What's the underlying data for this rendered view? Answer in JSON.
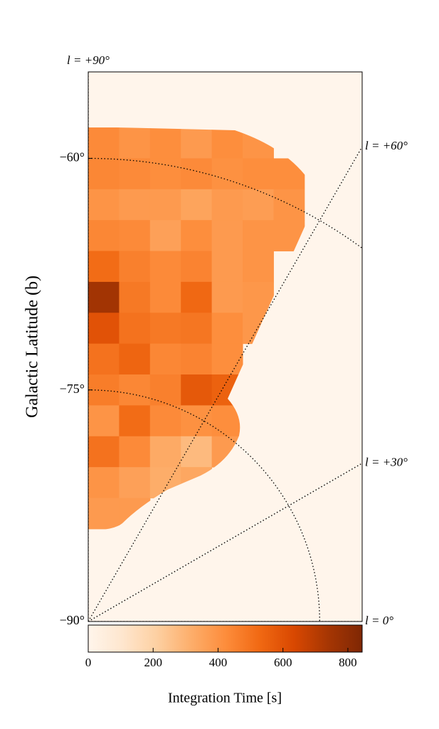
{
  "chart_data": {
    "type": "heatmap",
    "ylabel": "Galactic Latitude (b)",
    "colorbar_label": "Integration Time [s]",
    "xlim": [
      0,
      17.74
    ],
    "ylim": [
      -90,
      -54.4
    ],
    "yticks": [
      {
        "value": -90,
        "label": "−90°"
      },
      {
        "value": -75,
        "label": "−75°"
      },
      {
        "value": -60,
        "label": "−60°"
      }
    ],
    "longitude_lines": [
      {
        "value": 90,
        "label": "l = +90°"
      },
      {
        "value": 60,
        "label": "l = +60°"
      },
      {
        "value": 30,
        "label": "l = +30°"
      },
      {
        "value": 0,
        "label": "l = 0°"
      }
    ],
    "x_edges": [
      0,
      2,
      4,
      6,
      8,
      10,
      12,
      14
    ],
    "y_edges": [
      -58,
      -60,
      -62,
      -64,
      -66,
      -68,
      -70,
      -72,
      -74,
      -76,
      -78,
      -80,
      -82,
      -84
    ],
    "z": [
      [
        430,
        400,
        420,
        380,
        420,
        400,
        null
      ],
      [
        440,
        430,
        420,
        430,
        410,
        420,
        420
      ],
      [
        400,
        380,
        380,
        350,
        380,
        370,
        400
      ],
      [
        440,
        430,
        360,
        420,
        380,
        400,
        400
      ],
      [
        520,
        460,
        430,
        450,
        380,
        400,
        null
      ],
      [
        750,
        480,
        430,
        530,
        380,
        390,
        null
      ],
      [
        600,
        500,
        480,
        490,
        420,
        390,
        null
      ],
      [
        500,
        540,
        440,
        450,
        420,
        null,
        null
      ],
      [
        470,
        440,
        460,
        580,
        550,
        null,
        null
      ],
      [
        400,
        520,
        430,
        410,
        420,
        null,
        null
      ],
      [
        500,
        430,
        330,
        280,
        380,
        null,
        null
      ],
      [
        400,
        360,
        320,
        340,
        null,
        null,
        null
      ],
      [
        380,
        380,
        null,
        null,
        null,
        null,
        null
      ]
    ],
    "zlim": [
      0,
      844
    ],
    "colorbar_ticks": [
      0,
      200,
      400,
      600,
      800
    ],
    "background_color": "#fff5eb",
    "colormap": [
      "#fff5eb",
      "#fee6ce",
      "#fdd0a2",
      "#fdae6b",
      "#fd8d3c",
      "#f16913",
      "#d94801",
      "#a63603",
      "#7f2704"
    ]
  }
}
